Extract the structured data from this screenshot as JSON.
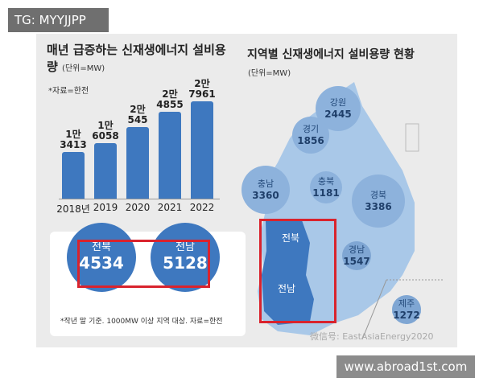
{
  "overlay": {
    "tag": "TG: MYYJJPP",
    "site": "www.abroad1st.com"
  },
  "chart_data": {
    "type": "bar",
    "title": "매년 급증하는 신재생에너지 설비용량",
    "unit": "(단위=MW)",
    "source": "*자료=한전",
    "categories": [
      "2018년",
      "2019",
      "2020",
      "2021",
      "2022"
    ],
    "values": [
      13413,
      16058,
      20545,
      24855,
      27961
    ],
    "labels_top": [
      "1만",
      "1만",
      "2만",
      "2만",
      "2만"
    ],
    "labels_bottom": [
      "3413",
      "6058",
      "545",
      "4855",
      "7961"
    ],
    "ylim": [
      0,
      27961
    ]
  },
  "map": {
    "title": "지역별 신재생에너지 설비용량 현황",
    "unit": "(단위=MW)",
    "regions": [
      {
        "name": "강원",
        "value": "2445"
      },
      {
        "name": "경기",
        "value": "1856"
      },
      {
        "name": "충남",
        "value": "3360"
      },
      {
        "name": "충북",
        "value": "1181"
      },
      {
        "name": "경북",
        "value": "3386"
      },
      {
        "name": "경남",
        "value": "1547"
      },
      {
        "name": "제주",
        "value": "1272"
      }
    ],
    "highlight_labels": [
      "전북",
      "전남"
    ],
    "watermark": "微信号: EastAsiaEnergy2020"
  },
  "callout": {
    "items": [
      {
        "name": "전북",
        "value": "4534"
      },
      {
        "name": "전남",
        "value": "5128"
      }
    ],
    "note": "*작년 말 기준. 1000MW 이상 지역 대상. 자료=한전"
  },
  "colors": {
    "bar": "#3e78bf",
    "highlight": "#d9232d",
    "map": "#a9c8e8"
  }
}
